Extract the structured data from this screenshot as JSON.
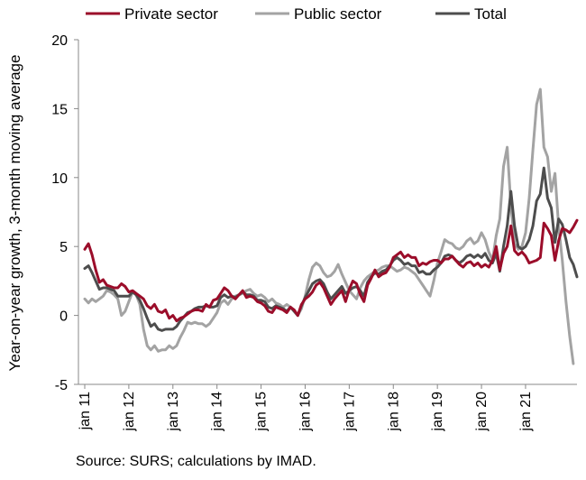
{
  "chart_data": {
    "type": "line",
    "ylabel": "Year-on-year growth, 3-month moving average",
    "xlabel": "",
    "ylim": [
      -5,
      20
    ],
    "yticks": [
      -5,
      0,
      5,
      10,
      15,
      20
    ],
    "x_tick_labels": [
      "jan 11",
      "jan 12",
      "jan 13",
      "jan 14",
      "jan 15",
      "jan 16",
      "jan 17",
      "jan 18",
      "jan 19",
      "jan 20",
      "jan 21"
    ],
    "x_start_label": "jan 11",
    "period": "monthly",
    "legend_position": "top",
    "grid": false,
    "series": [
      {
        "name": "Private sector",
        "color": "#9b0d2a",
        "values": [
          4.8,
          5.2,
          4.4,
          3.3,
          2.4,
          2.6,
          2.2,
          2.1,
          2.0,
          2.0,
          2.3,
          2.1,
          1.7,
          1.8,
          1.6,
          1.4,
          1.2,
          0.7,
          0.5,
          0.8,
          0.3,
          0.2,
          0.4,
          -0.2,
          0.0,
          -0.4,
          -0.2,
          -0.1,
          0.1,
          0.3,
          0.4,
          0.4,
          0.3,
          0.8,
          0.6,
          1.1,
          1.2,
          1.6,
          2.0,
          1.8,
          1.4,
          1.2,
          1.5,
          1.8,
          1.3,
          1.4,
          1.3,
          1.0,
          0.9,
          0.7,
          0.3,
          0.2,
          0.6,
          0.5,
          0.4,
          0.2,
          0.6,
          0.4,
          0.0,
          0.8,
          1.2,
          1.4,
          1.7,
          2.2,
          2.4,
          2.0,
          1.4,
          0.8,
          1.2,
          1.5,
          1.8,
          1.0,
          1.9,
          2.5,
          2.3,
          1.5,
          1.0,
          2.2,
          2.7,
          3.3,
          2.8,
          3.0,
          3.1,
          3.5,
          4.2,
          4.4,
          4.6,
          4.2,
          4.4,
          4.2,
          4.2,
          3.6,
          3.8,
          3.7,
          3.9,
          4.0,
          4.0,
          3.8,
          4.1,
          4.1,
          4.3,
          4.0,
          3.7,
          3.5,
          3.8,
          3.9,
          3.6,
          3.8,
          3.5,
          3.7,
          3.5,
          4.0,
          5.0,
          3.3,
          4.5,
          5.0,
          6.5,
          4.7,
          4.4,
          4.6,
          4.3,
          3.8,
          3.9,
          4.0,
          4.2,
          6.7,
          6.3,
          5.8,
          4.0,
          5.4,
          6.3,
          6.2,
          6.0,
          6.4,
          6.9
        ]
      },
      {
        "name": "Public sector",
        "color": "#a3a3a3",
        "values": [
          1.2,
          0.9,
          1.2,
          1.0,
          1.2,
          1.4,
          1.8,
          1.7,
          1.5,
          1.2,
          0.0,
          0.3,
          1.0,
          1.7,
          1.5,
          0.8,
          -1.0,
          -2.2,
          -2.5,
          -2.2,
          -2.6,
          -2.5,
          -2.5,
          -2.2,
          -2.4,
          -2.2,
          -1.6,
          -1.1,
          -0.5,
          -0.6,
          -0.5,
          -0.6,
          -0.6,
          -0.8,
          -0.6,
          -0.2,
          0.2,
          0.9,
          1.1,
          0.8,
          1.2,
          1.4,
          1.5,
          1.6,
          1.8,
          1.9,
          1.6,
          1.4,
          1.5,
          1.3,
          1.0,
          1.2,
          0.9,
          0.8,
          0.6,
          0.8,
          0.6,
          0.3,
          0.0,
          0.5,
          1.4,
          2.6,
          3.5,
          3.8,
          3.6,
          3.1,
          2.8,
          2.9,
          3.2,
          3.7,
          3.0,
          2.4,
          1.8,
          1.5,
          1.2,
          2.0,
          2.5,
          2.8,
          3.0,
          3.2,
          3.3,
          3.5,
          3.6,
          3.6,
          3.4,
          3.2,
          3.3,
          3.5,
          3.4,
          3.2,
          3.0,
          2.6,
          2.2,
          1.8,
          1.4,
          2.5,
          3.8,
          4.6,
          5.5,
          5.3,
          5.2,
          4.9,
          4.8,
          5.0,
          5.4,
          5.6,
          5.2,
          5.4,
          6.0,
          5.5,
          4.6,
          4.0,
          5.8,
          7.0,
          10.8,
          12.2,
          8.0,
          5.2,
          4.8,
          5.0,
          6.0,
          8.5,
          12.0,
          15.3,
          16.4,
          12.2,
          11.5,
          9.0,
          10.3,
          6.5,
          4.0,
          1.0,
          -1.5,
          -3.5
        ]
      },
      {
        "name": "Total",
        "color": "#4d4d4d",
        "values": [
          3.4,
          3.6,
          3.1,
          2.5,
          1.9,
          2.0,
          2.0,
          1.9,
          1.8,
          1.4,
          1.4,
          1.4,
          1.4,
          1.7,
          1.5,
          1.1,
          0.5,
          -0.2,
          -0.8,
          -0.6,
          -1.0,
          -1.1,
          -1.0,
          -1.0,
          -1.0,
          -0.8,
          -0.4,
          -0.1,
          0.2,
          0.3,
          0.5,
          0.6,
          0.6,
          0.7,
          0.6,
          0.6,
          0.7,
          1.3,
          1.5,
          1.3,
          1.4,
          1.3,
          1.5,
          1.7,
          1.5,
          1.5,
          1.4,
          1.1,
          1.1,
          1.0,
          0.6,
          0.5,
          0.7,
          0.6,
          0.5,
          0.3,
          0.6,
          0.3,
          0.0,
          0.7,
          1.3,
          1.8,
          2.3,
          2.5,
          2.6,
          2.3,
          1.7,
          1.2,
          1.5,
          1.8,
          2.1,
          1.6,
          1.8,
          2.0,
          2.1,
          1.8,
          1.4,
          2.4,
          2.8,
          3.1,
          3.0,
          3.2,
          3.3,
          3.6,
          4.0,
          4.2,
          4.0,
          3.7,
          3.8,
          3.6,
          3.6,
          3.1,
          3.2,
          3.0,
          3.0,
          3.3,
          3.5,
          3.8,
          4.3,
          4.4,
          4.3,
          4.0,
          3.8,
          4.0,
          4.3,
          4.4,
          4.2,
          4.4,
          4.2,
          4.5,
          4.0,
          3.8,
          4.5,
          3.2,
          5.0,
          6.5,
          9.0,
          6.5,
          5.0,
          4.8,
          5.0,
          5.5,
          6.5,
          8.3,
          8.8,
          10.7,
          8.5,
          7.8,
          5.3,
          7.0,
          6.6,
          5.5,
          4.2,
          3.7,
          2.8
        ]
      }
    ]
  },
  "source_note": "Source: SURS; calculations by IMAD."
}
